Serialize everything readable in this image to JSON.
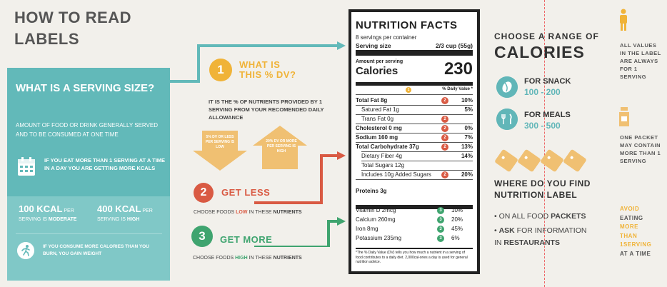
{
  "title": "HOW TO READ LABELS",
  "serving": {
    "heading": "WHAT IS A SERVING SIZE?",
    "description": "AMOUNT OF FOOD OR DRINK GENERALLY SERVED AND TO BE CONSUMED AT ONE TIME",
    "tip": "IF YOU EAT MORE THAN 1 SERVING AT A TIME IN A DAY YOU ARE GETTING MORE KCALS",
    "stat1_value": "100 KCAL",
    "stat1_per": "PER",
    "stat1_line2_prefix": "SERVING IS ",
    "stat1_line2_bold": "MODERATE",
    "stat2_value": "400 KCAL",
    "stat2_per": "PER",
    "stat2_line2_prefix": "SERVING IS ",
    "stat2_line2_bold": "HIGH",
    "warning": "IF YOU CONSUME MORE CALORIES THAN YOU BURN, YOU GAIN WEIGHT"
  },
  "dv": {
    "number": "1",
    "title_line1": "WHAT IS",
    "title_line2": "THIS % DV?",
    "description": "IT IS THE % OF NUTRIENTS PROVIDED BY 1 SERVING FROM YOUR RECOMENDED DAILY ALLOWANCE",
    "down_label": "5% DV OR LESS PER SERVING IS LOW",
    "up_label": "20% DV OR MORE PER SERVING IS HIGH"
  },
  "less": {
    "number": "2",
    "title": "GET LESS",
    "text_prefix": "CHOOSE FOODS ",
    "text_highlight": "LOW",
    "text_mid": " IN THESE ",
    "text_bold": "NUTRIENTS"
  },
  "more": {
    "number": "3",
    "title": "GET MORE",
    "text_prefix": "CHOOSE FOODS ",
    "text_highlight": "HIGH",
    "text_mid": " IN THESE ",
    "text_bold": "NUTRIENTS"
  },
  "nutrition": {
    "title": "NUTRITION FACTS",
    "servings": "8 servings per container",
    "serving_size_label": "Serving size",
    "serving_size_value": "2/3 cup (55g)",
    "amount_label": "Amount per serving",
    "calories_label": "Calories",
    "calories_value": "230",
    "dv_header": "% Daily Value *",
    "dv_badge": "1",
    "rows": [
      {
        "label": "Total Fat 8g",
        "value": "10%",
        "badge": "2"
      },
      {
        "label": "Satured Fat 1g",
        "value": "5%",
        "badge": ""
      },
      {
        "label": "Trans Fat 0g",
        "value": "",
        "badge": "2"
      },
      {
        "label": "Cholesterol 0 mg",
        "value": "0%",
        "badge": "2"
      },
      {
        "label": "Sodium 160 mg",
        "value": "7%",
        "badge": "2"
      },
      {
        "label": "Total Carbohydrate 37g",
        "value": "13%",
        "badge": "2"
      },
      {
        "label": "Dietary Fiber 4g",
        "value": "14%",
        "badge": ""
      },
      {
        "label": "Total Sugars 12g",
        "value": "",
        "badge": ""
      },
      {
        "label": "Includes 10g Added Sugars",
        "value": "20%",
        "badge": "2"
      },
      {
        "label": "Proteins 3g",
        "value": "",
        "badge": ""
      }
    ],
    "vitamins": [
      {
        "label": "Vitamin D 2mcg",
        "value": "10%",
        "badge": "3"
      },
      {
        "label": "Calcium 260mg",
        "value": "20%",
        "badge": "3"
      },
      {
        "label": "Iron 8mg",
        "value": "45%",
        "badge": "3"
      },
      {
        "label": "Potassium 235mg",
        "value": "6%",
        "badge": "3"
      }
    ],
    "footnote": "*The % Daily Value (DV) tells you how much a nutrient in a serving of food contributes to a daily diet. 2,000cal-ories a day is used for general nutrition advice."
  },
  "range": {
    "heading": "CHOOSE A RANGE OF",
    "calories": "CALORIES",
    "snack_label": "FOR SNACK",
    "snack_value": "100 - 200",
    "meal_label": "FOR MEALS",
    "meal_value": "300 - 500"
  },
  "find": {
    "heading_line1": "WHERE DO YOU FIND",
    "heading_line2": "NUTRITION LABEL",
    "item1_prefix": "• ON ALL FOOD ",
    "item1_bold": "PACKETS",
    "item2_bullet": "• ",
    "item2_bold": "ASK",
    "item2_rest": " FOR INFORMATION",
    "item2_line2_prefix": "IN ",
    "item2_line2_bold": "RESTAURANTS"
  },
  "far": {
    "text1": "ALL VALUES IN THE LABEL ARE ALWAYS FOR 1 SERVING",
    "text2": "ONE PACKET MAY CONTAIN MORE THAN 1 SERVING",
    "avoid_line1": "AVOID",
    "avoid_line2": "EATING",
    "avoid_line3": "MORE",
    "avoid_line4": "THAN",
    "avoid_line5": "1SERVING",
    "avoid_line6": "AT A TIME"
  },
  "colors": {
    "teal": "#62b9b9",
    "yellow": "#f0b338",
    "red": "#d95a43",
    "green": "#3fa46f"
  }
}
